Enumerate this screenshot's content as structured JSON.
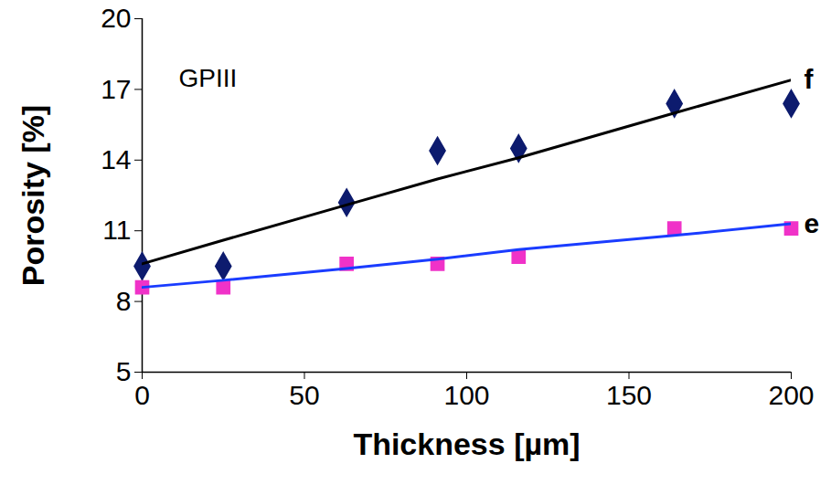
{
  "chart_data": {
    "type": "scatter",
    "annotations": [
      "GPIII"
    ],
    "x_label": "Thickness [µm]",
    "y_label": "Porosity [%]",
    "x": [
      0,
      25,
      63,
      91,
      116,
      164,
      200
    ],
    "series": [
      {
        "type": "scatter",
        "marker": "diamond",
        "color": "#0d1b6e",
        "values": [
          9.5,
          9.5,
          12.2,
          14.4,
          14.5,
          16.4,
          16.4
        ]
      },
      {
        "name": "f",
        "type": "line",
        "line_style": "solid",
        "color": "#000000",
        "values": [
          9.6,
          10.6,
          12.1,
          13.2,
          14.1,
          16.0,
          17.4
        ]
      },
      {
        "type": "scatter",
        "marker": "square",
        "color": "#f032c8",
        "values": [
          8.6,
          8.6,
          9.6,
          9.6,
          9.9,
          11.1,
          11.1
        ]
      },
      {
        "name": "e",
        "type": "line",
        "line_style": "solid",
        "color": "#1a3cff",
        "values": [
          8.6,
          8.9,
          9.4,
          9.8,
          10.2,
          10.8,
          11.3
        ]
      }
    ],
    "xlim": [
      0,
      200
    ],
    "xticks": [
      0,
      50,
      100,
      150,
      200
    ],
    "ylim": [
      5,
      20
    ],
    "yticks": [
      5,
      8,
      11,
      14,
      17,
      20
    ],
    "grid": false
  }
}
